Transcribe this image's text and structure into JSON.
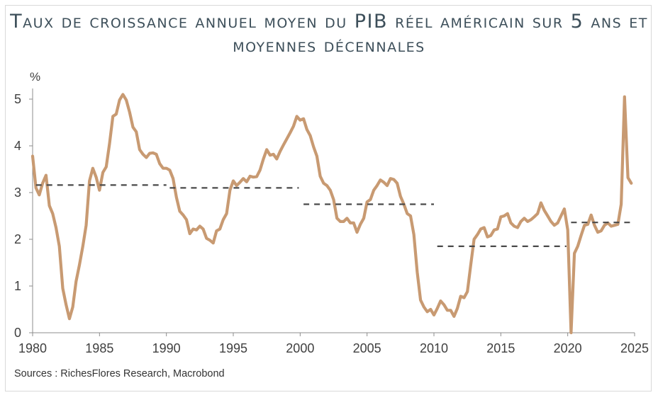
{
  "colors": {
    "line": "#c89a72",
    "avg": "#4a4a4a",
    "axis": "#8c8c8c",
    "title": "#3d4f5a"
  },
  "chart_data": {
    "type": "line",
    "title": "Taux de croissance annuel moyen du PIB réel américain sur 5 ans et moyennes décennales",
    "ylabel": "%",
    "xlabel": "",
    "xlim": [
      1980,
      2025
    ],
    "ylim": [
      0,
      5
    ],
    "x_ticks": [
      "1980",
      "1985",
      "1990",
      "1995",
      "2000",
      "2005",
      "2010",
      "2015",
      "2020",
      "2025"
    ],
    "y_ticks": [
      "0",
      "1",
      "2",
      "3",
      "4",
      "5"
    ],
    "grid": false,
    "legend": "none",
    "series": [
      {
        "style": "solid",
        "points": [
          [
            1980.0,
            3.78
          ],
          [
            1980.25,
            3.1
          ],
          [
            1980.5,
            2.95
          ],
          [
            1980.75,
            3.2
          ],
          [
            1981.0,
            3.37
          ],
          [
            1981.25,
            2.72
          ],
          [
            1981.5,
            2.55
          ],
          [
            1981.75,
            2.25
          ],
          [
            1982.0,
            1.85
          ],
          [
            1982.25,
            0.95
          ],
          [
            1982.5,
            0.6
          ],
          [
            1982.75,
            0.3
          ],
          [
            1983.0,
            0.55
          ],
          [
            1983.25,
            1.1
          ],
          [
            1983.5,
            1.45
          ],
          [
            1983.75,
            1.85
          ],
          [
            1984.0,
            2.3
          ],
          [
            1984.25,
            3.25
          ],
          [
            1984.5,
            3.52
          ],
          [
            1984.75,
            3.33
          ],
          [
            1985.0,
            3.05
          ],
          [
            1985.25,
            3.43
          ],
          [
            1985.5,
            3.55
          ],
          [
            1985.75,
            4.05
          ],
          [
            1986.0,
            4.63
          ],
          [
            1986.25,
            4.68
          ],
          [
            1986.5,
            4.98
          ],
          [
            1986.75,
            5.1
          ],
          [
            1987.0,
            4.98
          ],
          [
            1987.25,
            4.72
          ],
          [
            1987.5,
            4.4
          ],
          [
            1987.75,
            4.3
          ],
          [
            1988.0,
            3.92
          ],
          [
            1988.25,
            3.82
          ],
          [
            1988.5,
            3.75
          ],
          [
            1988.75,
            3.84
          ],
          [
            1989.0,
            3.85
          ],
          [
            1989.25,
            3.82
          ],
          [
            1989.5,
            3.62
          ],
          [
            1989.75,
            3.52
          ],
          [
            1990.0,
            3.52
          ],
          [
            1990.25,
            3.48
          ],
          [
            1990.5,
            3.3
          ],
          [
            1990.75,
            2.9
          ],
          [
            1991.0,
            2.6
          ],
          [
            1991.25,
            2.52
          ],
          [
            1991.5,
            2.42
          ],
          [
            1991.75,
            2.12
          ],
          [
            1992.0,
            2.22
          ],
          [
            1992.25,
            2.2
          ],
          [
            1992.5,
            2.28
          ],
          [
            1992.75,
            2.22
          ],
          [
            1993.0,
            2.02
          ],
          [
            1993.25,
            1.98
          ],
          [
            1993.5,
            1.92
          ],
          [
            1993.75,
            2.18
          ],
          [
            1994.0,
            2.22
          ],
          [
            1994.25,
            2.42
          ],
          [
            1994.5,
            2.55
          ],
          [
            1994.75,
            3.05
          ],
          [
            1995.0,
            3.25
          ],
          [
            1995.25,
            3.15
          ],
          [
            1995.5,
            3.22
          ],
          [
            1995.75,
            3.3
          ],
          [
            1996.0,
            3.23
          ],
          [
            1996.25,
            3.35
          ],
          [
            1996.5,
            3.33
          ],
          [
            1996.75,
            3.34
          ],
          [
            1997.0,
            3.48
          ],
          [
            1997.25,
            3.72
          ],
          [
            1997.5,
            3.92
          ],
          [
            1997.75,
            3.8
          ],
          [
            1998.0,
            3.82
          ],
          [
            1998.25,
            3.72
          ],
          [
            1998.5,
            3.88
          ],
          [
            1998.75,
            4.02
          ],
          [
            1999.0,
            4.15
          ],
          [
            1999.25,
            4.28
          ],
          [
            1999.5,
            4.42
          ],
          [
            1999.75,
            4.63
          ],
          [
            2000.0,
            4.55
          ],
          [
            2000.25,
            4.58
          ],
          [
            2000.5,
            4.35
          ],
          [
            2000.75,
            4.22
          ],
          [
            2001.0,
            3.98
          ],
          [
            2001.25,
            3.78
          ],
          [
            2001.5,
            3.35
          ],
          [
            2001.75,
            3.2
          ],
          [
            2002.0,
            3.15
          ],
          [
            2002.25,
            3.05
          ],
          [
            2002.5,
            2.85
          ],
          [
            2002.75,
            2.45
          ],
          [
            2003.0,
            2.38
          ],
          [
            2003.25,
            2.38
          ],
          [
            2003.5,
            2.45
          ],
          [
            2003.75,
            2.35
          ],
          [
            2004.0,
            2.35
          ],
          [
            2004.25,
            2.15
          ],
          [
            2004.5,
            2.32
          ],
          [
            2004.75,
            2.45
          ],
          [
            2005.0,
            2.8
          ],
          [
            2005.25,
            2.85
          ],
          [
            2005.5,
            3.05
          ],
          [
            2005.75,
            3.15
          ],
          [
            2006.0,
            3.27
          ],
          [
            2006.25,
            3.22
          ],
          [
            2006.5,
            3.15
          ],
          [
            2006.75,
            3.3
          ],
          [
            2007.0,
            3.28
          ],
          [
            2007.25,
            3.2
          ],
          [
            2007.5,
            2.92
          ],
          [
            2007.75,
            2.75
          ],
          [
            2008.0,
            2.55
          ],
          [
            2008.25,
            2.5
          ],
          [
            2008.5,
            2.1
          ],
          [
            2008.75,
            1.3
          ],
          [
            2009.0,
            0.7
          ],
          [
            2009.25,
            0.55
          ],
          [
            2009.5,
            0.45
          ],
          [
            2009.75,
            0.5
          ],
          [
            2010.0,
            0.38
          ],
          [
            2010.25,
            0.52
          ],
          [
            2010.5,
            0.68
          ],
          [
            2010.75,
            0.6
          ],
          [
            2011.0,
            0.48
          ],
          [
            2011.25,
            0.48
          ],
          [
            2011.5,
            0.35
          ],
          [
            2011.75,
            0.52
          ],
          [
            2012.0,
            0.78
          ],
          [
            2012.25,
            0.75
          ],
          [
            2012.5,
            0.88
          ],
          [
            2012.75,
            1.45
          ],
          [
            2013.0,
            2.0
          ],
          [
            2013.25,
            2.1
          ],
          [
            2013.5,
            2.22
          ],
          [
            2013.75,
            2.25
          ],
          [
            2014.0,
            2.05
          ],
          [
            2014.25,
            2.08
          ],
          [
            2014.5,
            2.2
          ],
          [
            2014.75,
            2.22
          ],
          [
            2015.0,
            2.48
          ],
          [
            2015.25,
            2.5
          ],
          [
            2015.5,
            2.55
          ],
          [
            2015.75,
            2.35
          ],
          [
            2016.0,
            2.28
          ],
          [
            2016.25,
            2.25
          ],
          [
            2016.5,
            2.38
          ],
          [
            2016.75,
            2.45
          ],
          [
            2017.0,
            2.38
          ],
          [
            2017.25,
            2.42
          ],
          [
            2017.5,
            2.48
          ],
          [
            2017.75,
            2.55
          ],
          [
            2018.0,
            2.78
          ],
          [
            2018.25,
            2.62
          ],
          [
            2018.5,
            2.5
          ],
          [
            2018.75,
            2.38
          ],
          [
            2019.0,
            2.3
          ],
          [
            2019.25,
            2.35
          ],
          [
            2019.5,
            2.5
          ],
          [
            2019.75,
            2.65
          ],
          [
            2020.0,
            2.2
          ],
          [
            2020.25,
            0.0
          ],
          [
            2020.5,
            1.7
          ],
          [
            2020.75,
            1.85
          ],
          [
            2021.0,
            2.08
          ],
          [
            2021.25,
            2.3
          ],
          [
            2021.5,
            2.32
          ],
          [
            2021.75,
            2.52
          ],
          [
            2022.0,
            2.3
          ],
          [
            2022.25,
            2.15
          ],
          [
            2022.5,
            2.18
          ],
          [
            2022.75,
            2.3
          ],
          [
            2023.0,
            2.35
          ],
          [
            2023.25,
            2.28
          ],
          [
            2023.5,
            2.3
          ],
          [
            2023.75,
            2.32
          ],
          [
            2024.0,
            2.75
          ],
          [
            2024.25,
            5.05
          ],
          [
            2024.5,
            3.32
          ],
          [
            2024.75,
            3.2
          ]
        ]
      },
      {
        "style": "dashed",
        "points": [
          [
            1980.25,
            3.16
          ],
          [
            1990.0,
            3.16
          ]
        ]
      },
      {
        "style": "dashed",
        "points": [
          [
            1990.25,
            3.1
          ],
          [
            1999.9,
            3.1
          ]
        ]
      },
      {
        "style": "dashed",
        "points": [
          [
            2000.25,
            2.75
          ],
          [
            2010.0,
            2.75
          ]
        ]
      },
      {
        "style": "dashed",
        "points": [
          [
            2010.25,
            1.85
          ],
          [
            2019.9,
            1.85
          ]
        ]
      },
      {
        "style": "dashed",
        "points": [
          [
            2020.25,
            2.36
          ],
          [
            2025.0,
            2.36
          ]
        ]
      }
    ]
  },
  "source": "Sources : RichesFlores Research, Macrobond"
}
